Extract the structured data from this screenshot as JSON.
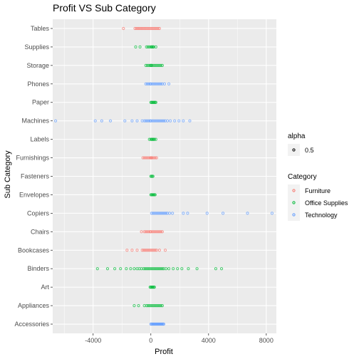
{
  "chart_data": {
    "type": "scatter",
    "title": "Profit VS Sub Category",
    "xlabel": "Profit",
    "ylabel": "Sub Category",
    "xlim": [
      -6800,
      8700
    ],
    "xticks": [
      -4000,
      0,
      4000,
      8000
    ],
    "xtick_labels": [
      "-4000",
      "0",
      "4000",
      "8000"
    ],
    "grid": true,
    "categories": [
      "Tables",
      "Supplies",
      "Storage",
      "Phones",
      "Paper",
      "Machines",
      "Labels",
      "Furnishings",
      "Fasteners",
      "Envelopes",
      "Copiers",
      "Chairs",
      "Bookcases",
      "Binders",
      "Art",
      "Appliances",
      "Accessories"
    ],
    "series": [
      {
        "name": "Furniture",
        "color": "#F8766D",
        "points": [
          {
            "category": "Tables",
            "x": [
              -1900,
              -1100,
              -1000,
              -900,
              -800,
              -700,
              -600,
              -500,
              -400,
              -300,
              -200,
              -100,
              0,
              100,
              200,
              300,
              400,
              500,
              600
            ]
          },
          {
            "category": "Furnishings",
            "x": [
              -550,
              -450,
              -350,
              -250,
              -150,
              -50,
              0,
              50,
              100,
              200,
              300,
              400
            ]
          },
          {
            "category": "Chairs",
            "x": [
              -650,
              -450,
              -350,
              -250,
              -150,
              -50,
              0,
              100,
              200,
              300,
              400,
              500,
              600,
              700,
              800
            ]
          },
          {
            "category": "Bookcases",
            "x": [
              -1650,
              -1300,
              -950,
              -600,
              -500,
              -400,
              -300,
              -200,
              -100,
              0,
              100,
              200,
              300,
              400,
              600,
              1000
            ]
          }
        ]
      },
      {
        "name": "Office Supplies",
        "color": "#00BA38",
        "points": [
          {
            "category": "Supplies",
            "x": [
              -1050,
              -750,
              -300,
              -200,
              -100,
              0,
              50,
              100,
              150,
              200,
              350
            ]
          },
          {
            "category": "Storage",
            "x": [
              -350,
              -250,
              -150,
              -50,
              0,
              50,
              100,
              200,
              300,
              400,
              500,
              600,
              700,
              800
            ]
          },
          {
            "category": "Paper",
            "x": [
              0,
              50,
              100,
              150,
              200,
              250,
              300,
              350
            ]
          },
          {
            "category": "Labels",
            "x": [
              -100,
              0,
              50,
              100,
              150,
              200,
              250,
              350
            ]
          },
          {
            "category": "Fasteners",
            "x": [
              0,
              50,
              100,
              150
            ]
          },
          {
            "category": "Envelopes",
            "x": [
              0,
              50,
              100,
              150,
              200,
              250,
              300
            ]
          },
          {
            "category": "Binders",
            "x": [
              -3700,
              -3000,
              -2500,
              -2100,
              -1700,
              -1400,
              -1150,
              -950,
              -800,
              -650,
              -500,
              -400,
              -300,
              -200,
              -100,
              0,
              100,
              200,
              300,
              400,
              500,
              600,
              700,
              800,
              900,
              1050,
              1250,
              1550,
              1850,
              2150,
              2600,
              3200,
              4500,
              4900
            ]
          },
          {
            "category": "Art",
            "x": [
              -50,
              0,
              50,
              100,
              150,
              200,
              250
            ]
          },
          {
            "category": "Appliances",
            "x": [
              -1150,
              -850,
              -450,
              -300,
              -200,
              -100,
              0,
              100,
              200,
              300,
              400,
              500,
              600,
              700,
              800
            ]
          }
        ]
      },
      {
        "name": "Technology",
        "color": "#619CFF",
        "points": [
          {
            "category": "Phones",
            "x": [
              -350,
              -250,
              -150,
              -50,
              0,
              100,
              200,
              300,
              400,
              500,
              600,
              700,
              800,
              950,
              1250
            ]
          },
          {
            "category": "Machines",
            "x": [
              -6600,
              -3850,
              -3400,
              -2800,
              -1800,
              -1300,
              -950,
              -600,
              -450,
              -350,
              -250,
              -150,
              -50,
              0,
              100,
              200,
              300,
              400,
              500,
              600,
              700,
              800,
              900,
              1000,
              1150,
              1350,
              1650,
              1950,
              2250,
              2700
            ]
          },
          {
            "category": "Copiers",
            "x": [
              50,
              150,
              250,
              350,
              450,
              550,
              650,
              750,
              850,
              950,
              1050,
              1150,
              1300,
              1500,
              2250,
              2550,
              3900,
              5000,
              6700,
              8400
            ]
          },
          {
            "category": "Accessories",
            "x": [
              0,
              50,
              100,
              150,
              200,
              250,
              300,
              350,
              400,
              450,
              500,
              550,
              600,
              650,
              700,
              750,
              800,
              850,
              900
            ]
          }
        ]
      }
    ],
    "legend": {
      "placement": "right",
      "alpha_title": "alpha",
      "alpha_label": "0.5",
      "category_title": "Category",
      "entries": [
        "Furniture",
        "Office Supplies",
        "Technology"
      ]
    }
  }
}
